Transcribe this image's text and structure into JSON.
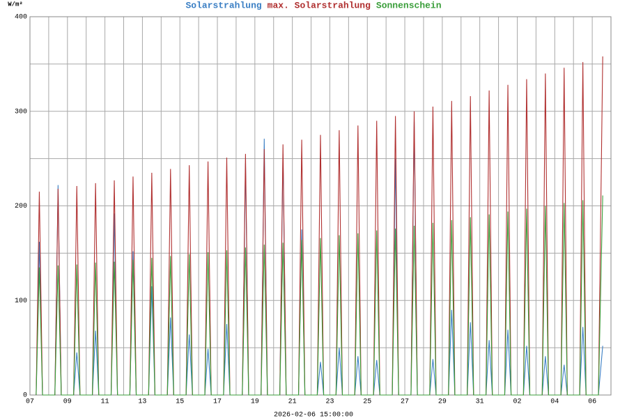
{
  "chart_data": {
    "type": "line",
    "y_label": "W/m²",
    "x_label": "2026-02-06 15:00:00",
    "x": [
      0.33,
      0.5,
      0.67,
      1.33,
      1.5,
      1.67,
      2.33,
      2.5,
      2.67,
      3.33,
      3.5,
      3.67,
      4.33,
      4.5,
      4.67,
      5.33,
      5.5,
      5.67,
      6.33,
      6.5,
      6.67,
      7.33,
      7.5,
      7.67,
      8.33,
      8.5,
      8.67,
      9.33,
      9.5,
      9.67,
      10.33,
      10.5,
      10.67,
      11.33,
      11.5,
      11.67,
      12.33,
      12.5,
      12.67,
      13.33,
      13.5,
      13.67,
      14.33,
      14.5,
      14.67,
      15.33,
      15.5,
      15.67,
      16.33,
      16.5,
      16.67,
      17.33,
      17.5,
      17.67,
      18.33,
      18.5,
      18.67,
      19.33,
      19.5,
      19.67,
      20.33,
      20.5,
      20.67,
      21.33,
      21.5,
      21.67,
      22.33,
      22.5,
      22.67,
      23.33,
      23.5,
      23.67,
      24.33,
      24.5,
      24.67,
      25.33,
      25.5,
      25.67,
      26.33,
      26.5,
      26.67,
      27.33,
      27.5,
      27.67,
      28.33,
      28.5,
      28.67,
      29.33,
      29.5,
      29.67,
      30.33,
      30.56
    ],
    "series": [
      {
        "name": "Solarstrahlung",
        "color": "#3b7fc4",
        "values": [
          0,
          162,
          0,
          0,
          222,
          0,
          0,
          45,
          0,
          0,
          68,
          0,
          0,
          192,
          0,
          0,
          152,
          0,
          0,
          115,
          0,
          0,
          82,
          0,
          0,
          64,
          0,
          0,
          49,
          0,
          0,
          75,
          0,
          0,
          245,
          0,
          0,
          271,
          0,
          0,
          255,
          0,
          0,
          175,
          0,
          0,
          35,
          0,
          0,
          50,
          0,
          0,
          41,
          0,
          0,
          37,
          0,
          0,
          250,
          0,
          0,
          289,
          0,
          0,
          38,
          0,
          0,
          90,
          0,
          0,
          77,
          0,
          0,
          58,
          0,
          0,
          69,
          0,
          0,
          52,
          0,
          0,
          41,
          0,
          0,
          32,
          0,
          0,
          72,
          0,
          0,
          52
        ]
      },
      {
        "name": "max. Solarstrahlung",
        "color": "#b03030",
        "values": [
          0,
          215,
          0,
          0,
          218,
          0,
          0,
          221,
          0,
          0,
          224,
          0,
          0,
          227,
          0,
          0,
          231,
          0,
          0,
          235,
          0,
          0,
          239,
          0,
          0,
          243,
          0,
          0,
          247,
          0,
          0,
          251,
          0,
          0,
          255,
          0,
          0,
          260,
          0,
          0,
          265,
          0,
          0,
          270,
          0,
          0,
          275,
          0,
          0,
          280,
          0,
          0,
          285,
          0,
          0,
          290,
          0,
          0,
          295,
          0,
          0,
          300,
          0,
          0,
          305,
          0,
          0,
          311,
          0,
          0,
          316,
          0,
          0,
          322,
          0,
          0,
          328,
          0,
          0,
          334,
          0,
          0,
          340,
          0,
          0,
          346,
          0,
          0,
          352,
          0,
          0,
          358
        ]
      },
      {
        "name": "Sonnenschein",
        "color": "#3a9e3a",
        "values": [
          0,
          135,
          0,
          0,
          137,
          0,
          0,
          138,
          0,
          0,
          140,
          0,
          0,
          141,
          0,
          0,
          143,
          0,
          0,
          145,
          0,
          0,
          147,
          0,
          0,
          149,
          0,
          0,
          151,
          0,
          0,
          153,
          0,
          0,
          156,
          0,
          0,
          159,
          0,
          0,
          161,
          0,
          0,
          164,
          0,
          0,
          166,
          0,
          0,
          169,
          0,
          0,
          171,
          0,
          0,
          174,
          0,
          0,
          176,
          0,
          0,
          179,
          0,
          0,
          182,
          0,
          0,
          185,
          0,
          0,
          188,
          0,
          0,
          191,
          0,
          0,
          194,
          0,
          0,
          197,
          0,
          0,
          200,
          0,
          0,
          203,
          0,
          0,
          206,
          0,
          0,
          211
        ]
      }
    ],
    "xlim": [
      0,
      31
    ],
    "xticks": [
      {
        "value": 0,
        "label": "07"
      },
      {
        "value": 2,
        "label": "09"
      },
      {
        "value": 4,
        "label": "11"
      },
      {
        "value": 6,
        "label": "13"
      },
      {
        "value": 8,
        "label": "15"
      },
      {
        "value": 10,
        "label": "17"
      },
      {
        "value": 12,
        "label": "19"
      },
      {
        "value": 14,
        "label": "21"
      },
      {
        "value": 16,
        "label": "23"
      },
      {
        "value": 18,
        "label": "25"
      },
      {
        "value": 20,
        "label": "27"
      },
      {
        "value": 22,
        "label": "29"
      },
      {
        "value": 24,
        "label": "31"
      },
      {
        "value": 26,
        "label": "02"
      },
      {
        "value": 28,
        "label": "04"
      },
      {
        "value": 30,
        "label": "06"
      }
    ],
    "xminor_ticks": [
      1,
      3,
      5,
      7,
      9,
      11,
      13,
      15,
      17,
      19,
      21,
      23,
      25,
      27,
      29,
      31
    ],
    "ylim": [
      0,
      400
    ],
    "yticks": [
      0,
      100,
      200,
      300,
      400
    ],
    "yminor_ticks": [
      50,
      150,
      250,
      350
    ],
    "grid": true
  }
}
